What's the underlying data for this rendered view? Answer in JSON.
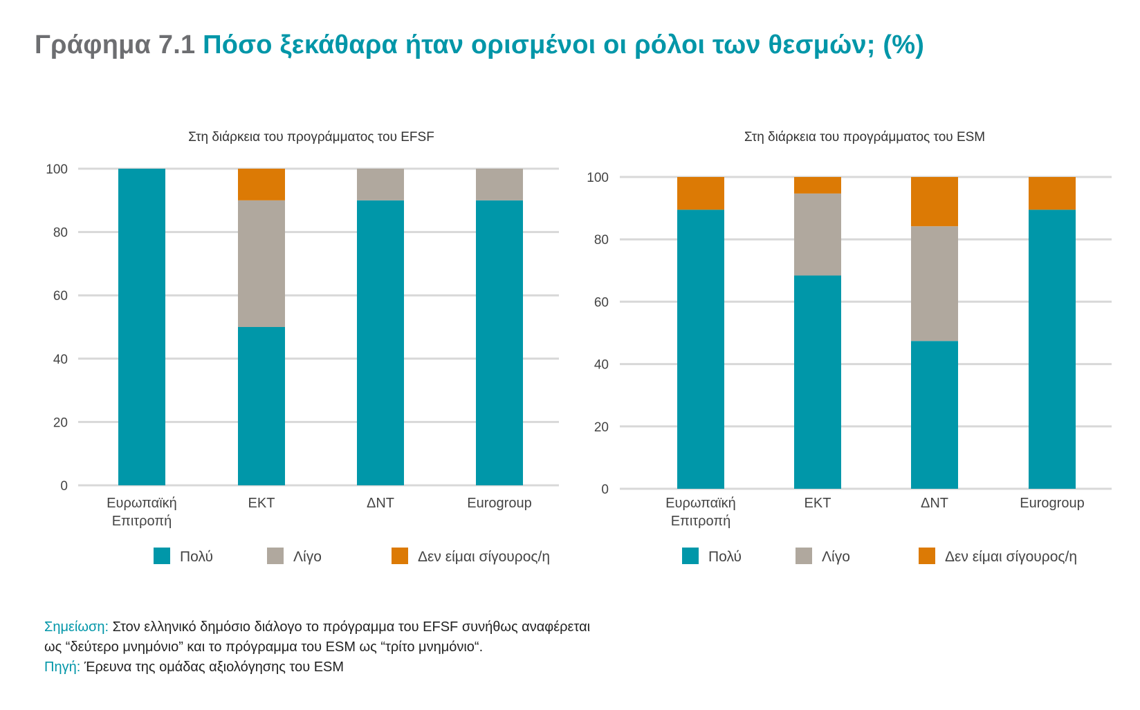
{
  "figure": {
    "number": "Γράφημα 7.1",
    "title": "Πόσο ξεκάθαρα ήταν ορισμένοι οι ρόλοι των θεσμών; (%)"
  },
  "colors": {
    "Πολύ": "#0097a9",
    "Λίγο": "#b0a89e",
    "Δεν είμαι σίγουρος/η": "#dc7a05",
    "grid": "#d8d8d8"
  },
  "chart_data": [
    {
      "type": "bar",
      "stacked": true,
      "title": "Στη διάρκεια του προγράμματος του EFSF",
      "categories": [
        [
          "Ευρωπαϊκή",
          "Επιτροπή"
        ],
        [
          "ΕΚΤ"
        ],
        [
          "ΔΝΤ"
        ],
        [
          "Eurogroup"
        ]
      ],
      "series": [
        {
          "name": "Πολύ",
          "values": [
            100,
            50,
            90,
            90
          ]
        },
        {
          "name": "Λίγο",
          "values": [
            0,
            40,
            10,
            10
          ]
        },
        {
          "name": "Δεν είμαι σίγουρος/η",
          "values": [
            0,
            10,
            0,
            0
          ]
        }
      ],
      "ylim": [
        0,
        100
      ],
      "yticks": [
        "0",
        "20",
        "40",
        "60",
        "80",
        "100"
      ],
      "grid": true,
      "legend": "bottom"
    },
    {
      "type": "bar",
      "stacked": true,
      "title": "Στη διάρκεια του προγράμματος του ESM",
      "categories": [
        [
          "Ευρωπαϊκή",
          "Επιτροπή"
        ],
        [
          "ΕΚΤ"
        ],
        [
          "ΔΝΤ"
        ],
        [
          "Eurogroup"
        ]
      ],
      "series": [
        {
          "name": "Πολύ",
          "values": [
            89.5,
            68.4,
            47.4,
            89.5
          ]
        },
        {
          "name": "Λίγο",
          "values": [
            0,
            26.3,
            36.8,
            0
          ]
        },
        {
          "name": "Δεν είμαι σίγουρος/η",
          "values": [
            10.5,
            5.3,
            15.8,
            10.5
          ]
        }
      ],
      "ylim": [
        0,
        100
      ],
      "yticks": [
        "0",
        "20",
        "40",
        "60",
        "80",
        "100"
      ],
      "grid": true,
      "legend": "bottom"
    }
  ],
  "notes": {
    "note_label": "Σημείωση:",
    "note_line1": "Στον ελληνικό δημόσιο διάλογο το πρόγραμμα του EFSF συνήθως αναφέρεται",
    "note_line2": "ως “δεύτερο μνημόνιο” και το πρόγραμμα του ESM ως “τρίτο μνημόνιο“.",
    "source_label": "Πηγή:",
    "source_text": "Έρευνα της ομάδας αξιολόγησης του ESM"
  }
}
